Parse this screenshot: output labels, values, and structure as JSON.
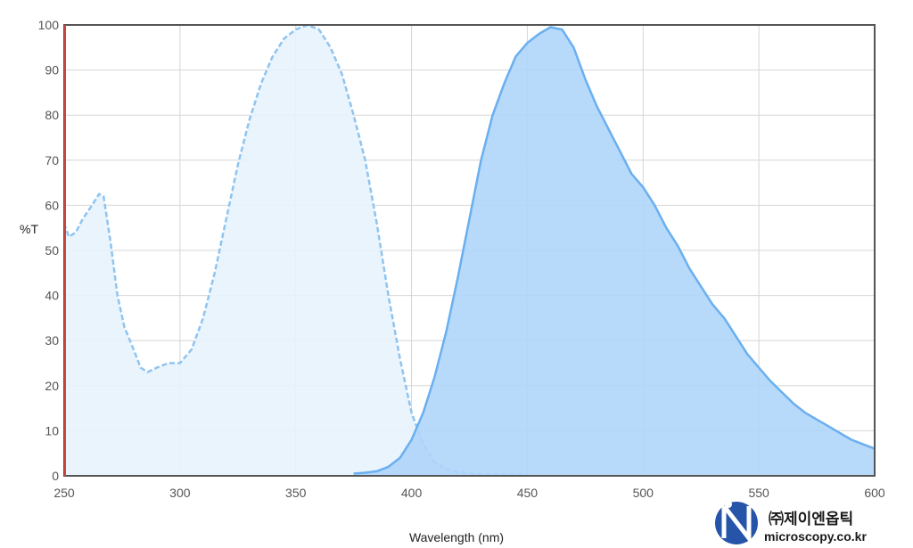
{
  "chart_data": {
    "type": "area",
    "xlabel": "Wavelength (nm)",
    "ylabel": "%T",
    "xlim": [
      250,
      600
    ],
    "ylim": [
      0,
      100
    ],
    "x_ticks": [
      250,
      300,
      350,
      400,
      450,
      500,
      550,
      600
    ],
    "y_ticks": [
      0,
      10,
      20,
      30,
      40,
      50,
      60,
      70,
      80,
      90,
      100
    ],
    "grid": true,
    "series": [
      {
        "style": "dashed",
        "color": "#8ec4f0",
        "fill": "#e8f3fd",
        "points": [
          [
            250,
            56
          ],
          [
            252,
            53
          ],
          [
            255,
            54
          ],
          [
            258,
            57
          ],
          [
            262,
            60
          ],
          [
            265,
            62.5
          ],
          [
            267,
            62
          ],
          [
            270,
            52
          ],
          [
            273,
            40
          ],
          [
            276,
            33
          ],
          [
            280,
            28
          ],
          [
            283,
            24
          ],
          [
            286,
            23
          ],
          [
            290,
            24
          ],
          [
            295,
            25
          ],
          [
            300,
            25
          ],
          [
            305,
            28
          ],
          [
            310,
            35
          ],
          [
            315,
            45
          ],
          [
            320,
            57
          ],
          [
            325,
            69
          ],
          [
            330,
            79
          ],
          [
            335,
            87
          ],
          [
            340,
            93
          ],
          [
            345,
            97
          ],
          [
            350,
            99
          ],
          [
            355,
            100
          ],
          [
            360,
            99
          ],
          [
            365,
            95
          ],
          [
            370,
            89
          ],
          [
            375,
            80
          ],
          [
            380,
            70
          ],
          [
            385,
            56
          ],
          [
            390,
            40
          ],
          [
            395,
            26
          ],
          [
            400,
            14
          ],
          [
            405,
            7
          ],
          [
            410,
            3
          ],
          [
            415,
            1.5
          ],
          [
            420,
            0.8
          ],
          [
            430,
            0.3
          ],
          [
            440,
            0.2
          ],
          [
            450,
            0.2
          ]
        ]
      },
      {
        "style": "solid",
        "color": "#6aaff0",
        "fill": "#afd5fa",
        "points": [
          [
            375,
            0.5
          ],
          [
            380,
            0.7
          ],
          [
            385,
            1
          ],
          [
            390,
            2
          ],
          [
            395,
            4
          ],
          [
            400,
            8
          ],
          [
            405,
            14
          ],
          [
            410,
            22
          ],
          [
            415,
            32
          ],
          [
            420,
            44
          ],
          [
            425,
            57
          ],
          [
            430,
            70
          ],
          [
            435,
            80
          ],
          [
            440,
            87
          ],
          [
            445,
            93
          ],
          [
            450,
            96
          ],
          [
            455,
            98
          ],
          [
            460,
            99.5
          ],
          [
            465,
            99
          ],
          [
            470,
            95
          ],
          [
            475,
            88
          ],
          [
            480,
            82
          ],
          [
            485,
            77
          ],
          [
            490,
            72
          ],
          [
            495,
            67
          ],
          [
            500,
            64
          ],
          [
            505,
            60
          ],
          [
            510,
            55
          ],
          [
            515,
            51
          ],
          [
            520,
            46
          ],
          [
            525,
            42
          ],
          [
            530,
            38
          ],
          [
            535,
            35
          ],
          [
            540,
            31
          ],
          [
            545,
            27
          ],
          [
            550,
            24
          ],
          [
            555,
            21
          ],
          [
            560,
            18.5
          ],
          [
            565,
            16
          ],
          [
            570,
            14
          ],
          [
            575,
            12.5
          ],
          [
            580,
            11
          ],
          [
            585,
            9.5
          ],
          [
            590,
            8
          ],
          [
            595,
            7
          ],
          [
            600,
            6
          ]
        ]
      }
    ]
  },
  "logo": {
    "company": "㈜제이엔옵틱",
    "url": "microscopy.co.kr"
  },
  "colors": {
    "plot_border": "#555555",
    "grid": "#d6d6d6",
    "left_edge": "#d9413b",
    "logo_blue": "#2554a8"
  }
}
